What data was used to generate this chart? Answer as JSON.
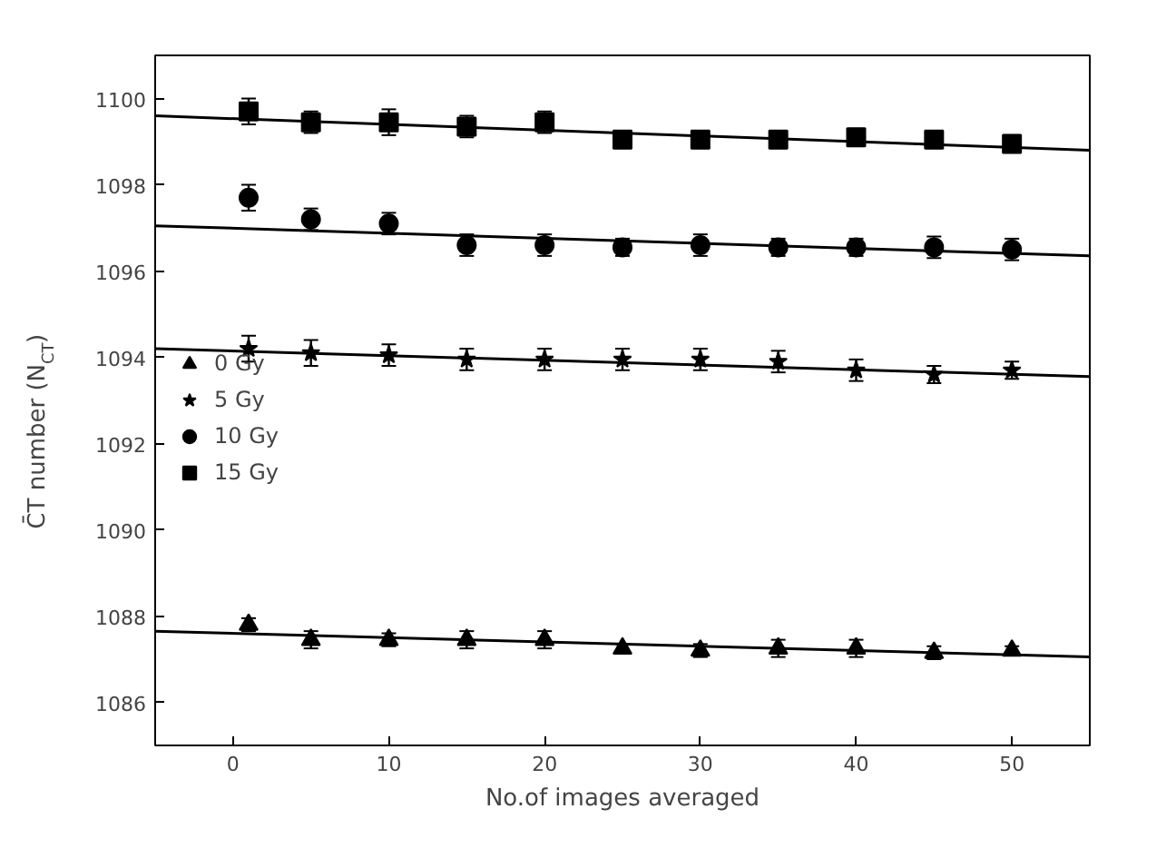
{
  "chart_data": {
    "type": "scatter",
    "xlabel": "No.of images averaged",
    "ylabel": "C̄T number (N$_{CT}$)",
    "xlim": [
      -5,
      55
    ],
    "ylim": [
      1085,
      1101
    ],
    "xticks": [
      0,
      10,
      20,
      30,
      40,
      50
    ],
    "yticks": [
      1086,
      1088,
      1090,
      1092,
      1094,
      1096,
      1098,
      1100
    ],
    "grid": false,
    "legend": "left",
    "series": [
      {
        "name": "0 Gy",
        "color": "#000000",
        "marker": "triangle",
        "x": [
          1,
          5,
          10,
          15,
          20,
          25,
          30,
          35,
          40,
          45,
          50
        ],
        "values": [
          1087.8,
          1087.45,
          1087.45,
          1087.45,
          1087.45,
          1087.25,
          1087.2,
          1087.25,
          1087.25,
          1087.15,
          1087.2
        ],
        "errors": [
          0.15,
          0.2,
          0.15,
          0.2,
          0.2,
          0.1,
          0.15,
          0.2,
          0.2,
          0.15,
          0.1
        ]
      },
      {
        "name": "5 Gy",
        "color": "#000000",
        "marker": "star",
        "x": [
          1,
          5,
          10,
          15,
          20,
          25,
          30,
          35,
          40,
          45,
          50
        ],
        "values": [
          1094.2,
          1094.1,
          1094.05,
          1093.95,
          1093.95,
          1093.95,
          1093.95,
          1093.9,
          1093.7,
          1093.6,
          1093.7
        ],
        "errors": [
          0.3,
          0.3,
          0.25,
          0.25,
          0.25,
          0.25,
          0.25,
          0.25,
          0.25,
          0.2,
          0.2
        ]
      },
      {
        "name": "10 Gy",
        "color": "#000000",
        "marker": "circle",
        "x": [
          1,
          5,
          10,
          15,
          20,
          25,
          30,
          35,
          40,
          45,
          50
        ],
        "values": [
          1097.7,
          1097.2,
          1097.1,
          1096.6,
          1096.6,
          1096.55,
          1096.6,
          1096.55,
          1096.55,
          1096.55,
          1096.5
        ],
        "errors": [
          0.3,
          0.25,
          0.25,
          0.25,
          0.25,
          0.2,
          0.25,
          0.2,
          0.2,
          0.25,
          0.25
        ]
      },
      {
        "name": "15 Gy",
        "color": "#000000",
        "marker": "square",
        "x": [
          1,
          5,
          10,
          15,
          20,
          25,
          30,
          35,
          40,
          45,
          50
        ],
        "values": [
          1099.7,
          1099.45,
          1099.45,
          1099.35,
          1099.45,
          1099.05,
          1099.05,
          1099.05,
          1099.1,
          1099.05,
          1098.95
        ],
        "errors": [
          0.3,
          0.25,
          0.3,
          0.25,
          0.25,
          0.2,
          0.2,
          0.2,
          0.2,
          0.2,
          0.2
        ]
      },
      {
        "type": "line",
        "color": "#000000",
        "x": [
          -5,
          55
        ],
        "values": [
          1087.65,
          1087.05
        ]
      },
      {
        "type": "line",
        "color": "#000000",
        "x": [
          -5,
          55
        ],
        "values": [
          1094.2,
          1093.55
        ]
      },
      {
        "type": "line",
        "color": "#000000",
        "x": [
          -5,
          55
        ],
        "values": [
          1097.05,
          1096.35
        ]
      },
      {
        "type": "line",
        "color": "#000000",
        "x": [
          -5,
          55
        ],
        "values": [
          1099.6,
          1098.8
        ]
      }
    ]
  }
}
